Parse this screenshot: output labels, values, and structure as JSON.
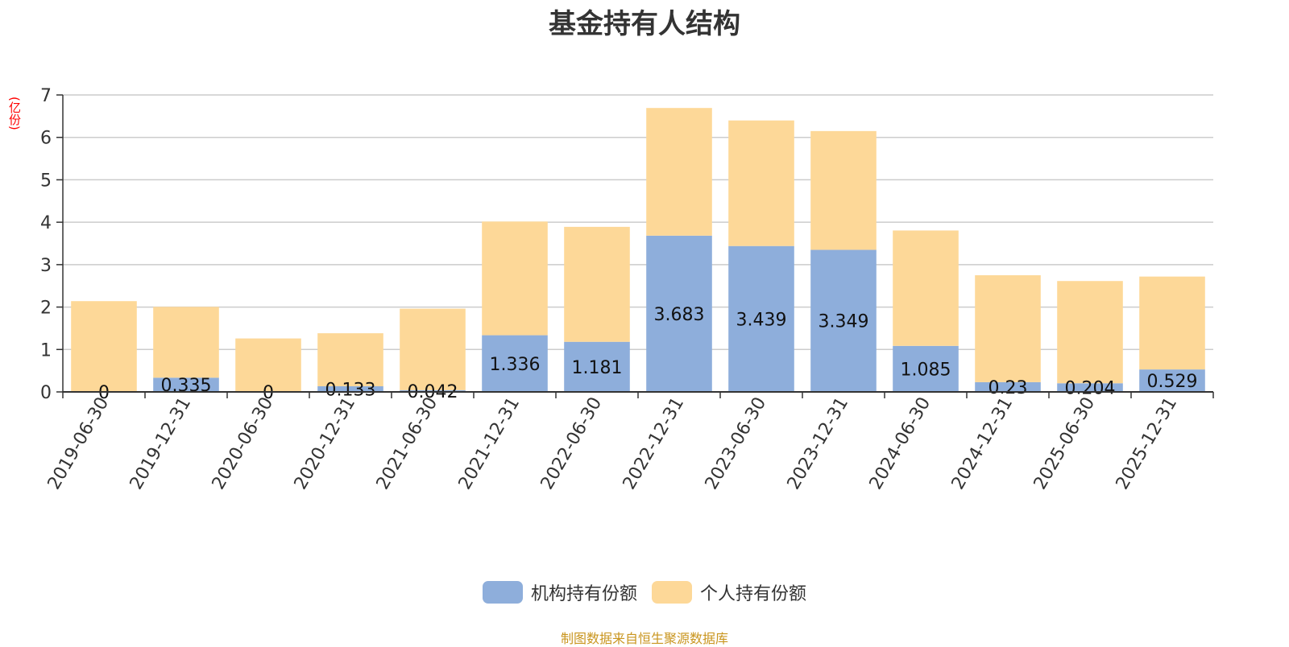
{
  "title": "基金持有人结构",
  "unit_label": "(亿份)",
  "source": "制图数据来自恒生聚源数据库",
  "colors": {
    "institution": "#8eaedb",
    "individual": "#fdd898",
    "axis": "#333333",
    "grid": "#cccccc"
  },
  "chart_data": {
    "type": "bar",
    "stacked": true,
    "categories": [
      "2019-06-30",
      "2019-12-31",
      "2020-06-30",
      "2020-12-31",
      "2021-06-30",
      "2021-12-31",
      "2022-06-30",
      "2022-12-31",
      "2023-06-30",
      "2023-12-31",
      "2024-06-30",
      "2024-12-31",
      "2025-06-30",
      "2025-12-31"
    ],
    "series": [
      {
        "name": "机构持有份额",
        "values": [
          0,
          0.335,
          0,
          0.133,
          0.042,
          1.336,
          1.181,
          3.683,
          3.439,
          3.349,
          1.085,
          0.23,
          0.204,
          0.529
        ],
        "labels": [
          "0",
          "0.335",
          "0",
          "0.133",
          "0.042",
          "1.336",
          "1.181",
          "3.683",
          "3.439",
          "3.349",
          "1.085",
          "0.23",
          "0.204",
          "0.529"
        ]
      },
      {
        "name": "个人持有份额",
        "values": [
          2.14,
          1.67,
          1.26,
          1.25,
          1.92,
          2.68,
          2.71,
          3.01,
          2.96,
          2.8,
          2.72,
          2.52,
          2.41,
          2.19
        ]
      }
    ],
    "ylim": [
      0,
      7
    ],
    "yticks": [
      0,
      1,
      2,
      3,
      4,
      5,
      6,
      7
    ],
    "grid": true,
    "legend": "bottom-center"
  }
}
